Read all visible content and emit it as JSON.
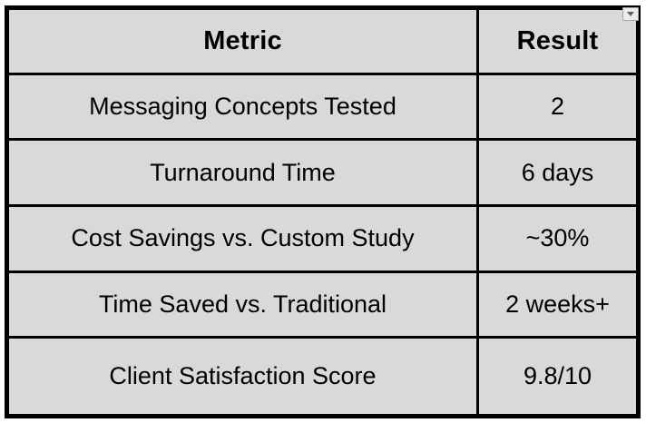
{
  "chart_data": {
    "type": "table",
    "columns": [
      "Metric",
      "Result"
    ],
    "rows": [
      [
        "Messaging Concepts Tested",
        "2"
      ],
      [
        "Turnaround Time",
        "6 days"
      ],
      [
        "Cost Savings vs. Custom Study",
        "~30%"
      ],
      [
        "Time Saved vs. Traditional",
        "2 weeks+"
      ],
      [
        "Client Satisfaction Score",
        "9.8/10"
      ]
    ]
  },
  "controls": {
    "dropdown_icon": "chevron-down"
  },
  "colors": {
    "cell_bg": "#d9d9d9",
    "border": "#000000",
    "page_bg": "#ffffff",
    "dropdown_bg": "#ececec",
    "dropdown_border": "#a6a6a6",
    "dropdown_arrow": "#5f5f5f"
  }
}
